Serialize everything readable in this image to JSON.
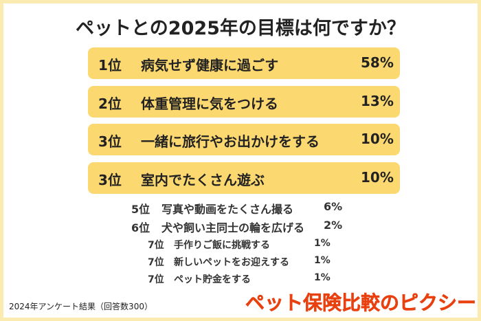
{
  "title": "ペットとの2025年の目標は何ですか？",
  "top_items": [
    {
      "rank": "1位",
      "label": "病気せず健康に過ごす",
      "percent": "58%"
    },
    {
      "rank": "2位",
      "label": "体重管理に気をつける",
      "percent": "13%"
    },
    {
      "rank": "3位",
      "label": "一緒に旅行やお出かけをする",
      "percent": "10%"
    },
    {
      "rank": "3位",
      "label": "室内でたくさん遊ぶ",
      "percent": "10%"
    }
  ],
  "mid_items": [
    {
      "rank": "5位",
      "label": "写真や動画をたくさん撮る",
      "percent": "6%"
    },
    {
      "rank": "6位",
      "label": "犬や飼い主同士の輪を広げる",
      "percent": "2%"
    }
  ],
  "small_items": [
    {
      "rank": "7位",
      "label": "手作りご飯に挑戦する",
      "percent": "1%"
    },
    {
      "rank": "7位",
      "label": "新しいペットをお迎えする",
      "percent": "1%"
    },
    {
      "rank": "7位",
      "label": "ペット貯金をする",
      "percent": "1%"
    }
  ],
  "footer": "2024年アンケート結果（回答数300）",
  "brand": "ペット保険比較のピクシー"
}
